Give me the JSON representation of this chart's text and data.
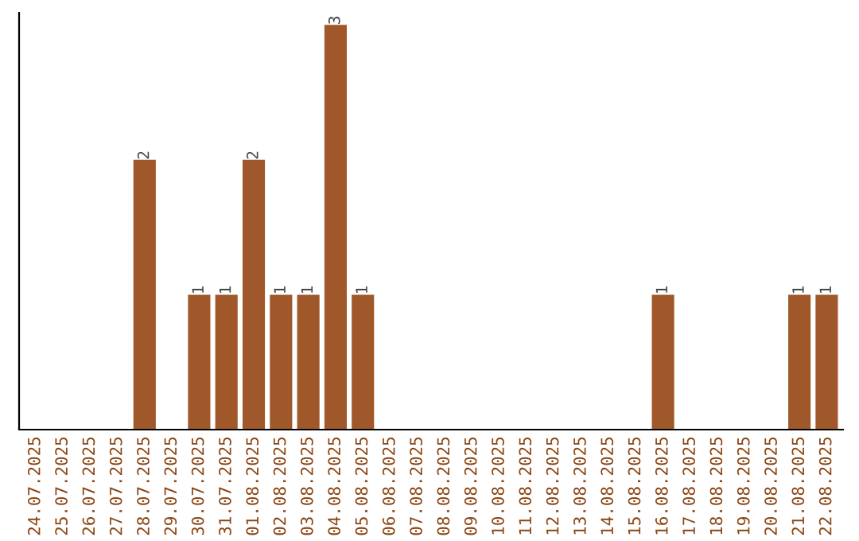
{
  "chart_data": {
    "type": "bar",
    "categories": [
      "24.07.2025",
      "25.07.2025",
      "26.07.2025",
      "27.07.2025",
      "28.07.2025",
      "29.07.2025",
      "30.07.2025",
      "31.07.2025",
      "01.08.2025",
      "02.08.2025",
      "03.08.2025",
      "04.08.2025",
      "05.08.2025",
      "06.08.2025",
      "07.08.2025",
      "08.08.2025",
      "09.08.2025",
      "10.08.2025",
      "11.08.2025",
      "12.08.2025",
      "13.08.2025",
      "14.08.2025",
      "15.08.2025",
      "16.08.2025",
      "17.08.2025",
      "18.08.2025",
      "19.08.2025",
      "20.08.2025",
      "21.08.2025",
      "22.08.2025"
    ],
    "values": [
      0,
      0,
      0,
      0,
      2,
      0,
      1,
      1,
      2,
      1,
      1,
      3,
      1,
      0,
      0,
      0,
      0,
      0,
      0,
      0,
      0,
      0,
      0,
      1,
      0,
      0,
      0,
      0,
      1,
      1
    ],
    "value_labels": [
      null,
      null,
      null,
      null,
      "2",
      null,
      "1",
      "1",
      "2",
      "1",
      "1",
      "3",
      "1",
      null,
      null,
      null,
      null,
      null,
      null,
      null,
      null,
      null,
      null,
      "1",
      null,
      null,
      null,
      null,
      "1",
      "1"
    ],
    "color": "#a0582a",
    "grid": false,
    "legend": false
  }
}
